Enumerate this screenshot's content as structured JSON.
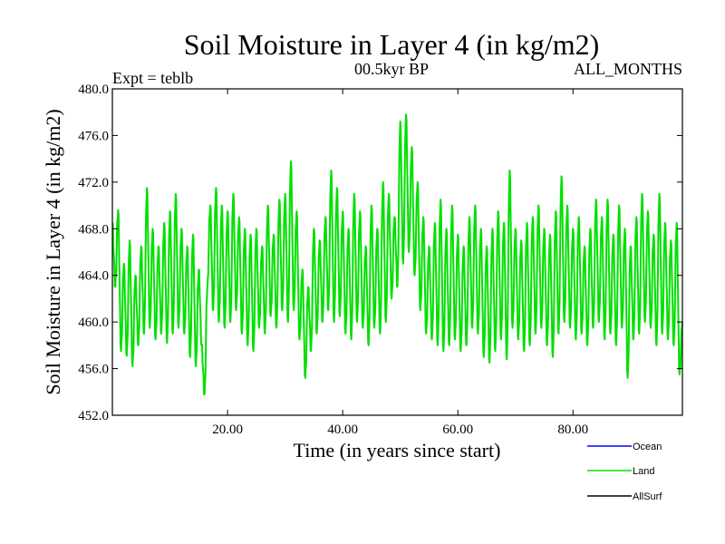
{
  "chart_data": {
    "type": "line",
    "title": "Soil Moisture in Layer 4 (in kg/m2)",
    "subtitle_left": "Expt = teblb",
    "subtitle_center": "00.5kyr BP",
    "subtitle_right": "ALL_MONTHS",
    "xlabel": "Time (in years since start)",
    "ylabel": "Soil Moisture in Layer 4 (in kg/m2)",
    "xlim": [
      0.0,
      99.0
    ],
    "ylim": [
      452.0,
      480.0
    ],
    "x_ticks": [
      20.0,
      40.0,
      60.0,
      80.0
    ],
    "x_tick_labels": [
      "20.00",
      "40.00",
      "60.00",
      "80.00"
    ],
    "y_ticks": [
      452.0,
      456.0,
      460.0,
      464.0,
      468.0,
      472.0,
      476.0,
      480.0
    ],
    "y_tick_labels": [
      "452.0",
      "456.0",
      "460.0",
      "464.0",
      "468.0",
      "472.0",
      "476.0",
      "480.0"
    ],
    "legend": [
      {
        "name": "Ocean",
        "color": "#0000ff"
      },
      {
        "name": "Land",
        "color": "#00e000"
      },
      {
        "name": "AllSurf",
        "color": "#000000"
      }
    ],
    "legend_position": "bottom-right",
    "series": [
      {
        "name": "Land",
        "color": "#00e000",
        "points_per_year": 12,
        "seasonal_amplitude": 4.0,
        "values": [
          [
            0.0,
            468.5
          ],
          [
            0.5,
            463.0
          ],
          [
            1.0,
            469.6
          ],
          [
            1.5,
            457.5
          ],
          [
            2.0,
            465.0
          ],
          [
            2.5,
            457.1
          ],
          [
            3.0,
            467.0
          ],
          [
            3.5,
            456.2
          ],
          [
            4.0,
            464.0
          ],
          [
            4.5,
            458.0
          ],
          [
            5.0,
            466.5
          ],
          [
            5.5,
            459.0
          ],
          [
            6.0,
            471.5
          ],
          [
            6.5,
            459.5
          ],
          [
            7.0,
            468.0
          ],
          [
            7.5,
            458.5
          ],
          [
            8.0,
            466.5
          ],
          [
            8.5,
            459.0
          ],
          [
            9.0,
            468.5
          ],
          [
            9.5,
            458.2
          ],
          [
            10.0,
            469.5
          ],
          [
            10.5,
            459.0
          ],
          [
            11.0,
            471.0
          ],
          [
            11.5,
            459.5
          ],
          [
            12.0,
            468.0
          ],
          [
            12.5,
            459.0
          ],
          [
            13.0,
            466.5
          ],
          [
            13.5,
            457.0
          ],
          [
            14.0,
            467.5
          ],
          [
            14.5,
            456.2
          ],
          [
            15.0,
            464.5
          ],
          [
            15.5,
            458.0
          ],
          [
            16.0,
            453.8
          ],
          [
            16.5,
            463.0
          ],
          [
            17.0,
            470.0
          ],
          [
            17.5,
            461.0
          ],
          [
            18.0,
            471.5
          ],
          [
            18.5,
            460.0
          ],
          [
            19.0,
            470.0
          ],
          [
            19.5,
            459.5
          ],
          [
            20.0,
            469.5
          ],
          [
            20.5,
            460.0
          ],
          [
            21.0,
            471.0
          ],
          [
            21.5,
            461.0
          ],
          [
            22.0,
            469.0
          ],
          [
            22.5,
            459.0
          ],
          [
            23.0,
            468.0
          ],
          [
            23.5,
            458.0
          ],
          [
            24.0,
            467.5
          ],
          [
            24.5,
            457.5
          ],
          [
            25.0,
            468.0
          ],
          [
            25.5,
            459.5
          ],
          [
            26.0,
            466.5
          ],
          [
            26.5,
            459.0
          ],
          [
            27.0,
            470.0
          ],
          [
            27.5,
            460.5
          ],
          [
            28.0,
            467.5
          ],
          [
            28.5,
            459.5
          ],
          [
            29.0,
            470.5
          ],
          [
            29.5,
            461.0
          ],
          [
            30.0,
            471.0
          ],
          [
            30.5,
            460.0
          ],
          [
            31.0,
            473.8
          ],
          [
            31.5,
            461.0
          ],
          [
            32.0,
            469.5
          ],
          [
            32.5,
            458.5
          ],
          [
            33.0,
            464.5
          ],
          [
            33.5,
            455.2
          ],
          [
            34.0,
            463.0
          ],
          [
            34.5,
            457.5
          ],
          [
            35.0,
            468.0
          ],
          [
            35.5,
            459.0
          ],
          [
            36.0,
            467.0
          ],
          [
            36.5,
            460.0
          ],
          [
            37.0,
            469.0
          ],
          [
            37.5,
            461.0
          ],
          [
            38.0,
            473.0
          ],
          [
            38.5,
            460.0
          ],
          [
            39.0,
            471.5
          ],
          [
            39.5,
            460.5
          ],
          [
            40.0,
            469.5
          ],
          [
            40.5,
            459.0
          ],
          [
            41.0,
            468.0
          ],
          [
            41.5,
            458.5
          ],
          [
            42.0,
            471.0
          ],
          [
            42.5,
            460.0
          ],
          [
            43.0,
            469.5
          ],
          [
            43.5,
            459.5
          ],
          [
            44.0,
            466.5
          ],
          [
            44.5,
            458.0
          ],
          [
            45.0,
            470.0
          ],
          [
            45.5,
            459.5
          ],
          [
            46.0,
            468.0
          ],
          [
            46.5,
            459.0
          ],
          [
            47.0,
            472.0
          ],
          [
            47.5,
            460.0
          ],
          [
            48.0,
            471.0
          ],
          [
            48.5,
            462.0
          ],
          [
            49.0,
            469.0
          ],
          [
            49.5,
            463.0
          ],
          [
            50.0,
            477.2
          ],
          [
            50.5,
            465.0
          ],
          [
            51.0,
            477.8
          ],
          [
            51.5,
            466.0
          ],
          [
            52.0,
            475.0
          ],
          [
            52.5,
            464.0
          ],
          [
            53.0,
            472.0
          ],
          [
            53.5,
            461.0
          ],
          [
            54.0,
            469.0
          ],
          [
            54.5,
            459.0
          ],
          [
            55.0,
            466.5
          ],
          [
            55.5,
            458.5
          ],
          [
            56.0,
            468.5
          ],
          [
            56.5,
            458.0
          ],
          [
            57.0,
            470.5
          ],
          [
            57.5,
            457.5
          ],
          [
            58.0,
            468.0
          ],
          [
            58.5,
            458.0
          ],
          [
            59.0,
            470.0
          ],
          [
            59.5,
            458.5
          ],
          [
            60.0,
            467.5
          ],
          [
            60.5,
            457.5
          ],
          [
            61.0,
            466.5
          ],
          [
            61.5,
            458.0
          ],
          [
            62.0,
            469.0
          ],
          [
            62.5,
            459.5
          ],
          [
            63.0,
            470.0
          ],
          [
            63.5,
            459.0
          ],
          [
            64.0,
            468.0
          ],
          [
            64.5,
            457.0
          ],
          [
            65.0,
            466.5
          ],
          [
            65.5,
            456.5
          ],
          [
            66.0,
            468.0
          ],
          [
            66.5,
            457.5
          ],
          [
            67.0,
            469.5
          ],
          [
            67.5,
            458.5
          ],
          [
            68.0,
            468.5
          ],
          [
            68.5,
            456.8
          ],
          [
            69.0,
            473.0
          ],
          [
            69.5,
            459.5
          ],
          [
            70.0,
            468.0
          ],
          [
            70.5,
            458.5
          ],
          [
            71.0,
            467.0
          ],
          [
            71.5,
            457.5
          ],
          [
            72.0,
            468.5
          ],
          [
            72.5,
            458.0
          ],
          [
            73.0,
            469.0
          ],
          [
            73.5,
            459.0
          ],
          [
            74.0,
            470.0
          ],
          [
            74.5,
            459.5
          ],
          [
            75.0,
            468.0
          ],
          [
            75.5,
            458.0
          ],
          [
            76.0,
            467.5
          ],
          [
            76.5,
            457.0
          ],
          [
            77.0,
            469.5
          ],
          [
            77.5,
            459.0
          ],
          [
            78.0,
            472.5
          ],
          [
            78.5,
            460.0
          ],
          [
            79.0,
            470.0
          ],
          [
            79.5,
            459.5
          ],
          [
            80.0,
            468.0
          ],
          [
            80.5,
            458.5
          ],
          [
            81.0,
            469.0
          ],
          [
            81.5,
            459.0
          ],
          [
            82.0,
            466.5
          ],
          [
            82.5,
            458.0
          ],
          [
            83.0,
            468.0
          ],
          [
            83.5,
            459.5
          ],
          [
            84.0,
            470.5
          ],
          [
            84.5,
            460.0
          ],
          [
            85.0,
            469.0
          ],
          [
            85.5,
            458.5
          ],
          [
            86.0,
            470.5
          ],
          [
            86.5,
            459.0
          ],
          [
            87.0,
            467.5
          ],
          [
            87.5,
            458.0
          ],
          [
            88.0,
            470.0
          ],
          [
            88.5,
            459.5
          ],
          [
            89.0,
            468.0
          ],
          [
            89.5,
            455.2
          ],
          [
            90.0,
            466.5
          ],
          [
            90.5,
            458.5
          ],
          [
            91.0,
            469.0
          ],
          [
            91.5,
            459.0
          ],
          [
            92.0,
            471.0
          ],
          [
            92.5,
            460.0
          ],
          [
            93.0,
            469.5
          ],
          [
            93.5,
            459.5
          ],
          [
            94.0,
            467.5
          ],
          [
            94.5,
            458.0
          ],
          [
            95.0,
            471.0
          ],
          [
            95.5,
            459.0
          ],
          [
            96.0,
            468.5
          ],
          [
            96.5,
            458.5
          ],
          [
            97.0,
            467.0
          ],
          [
            97.5,
            458.0
          ],
          [
            98.0,
            468.5
          ],
          [
            98.5,
            455.5
          ],
          [
            99.0,
            460.0
          ]
        ]
      }
    ]
  }
}
